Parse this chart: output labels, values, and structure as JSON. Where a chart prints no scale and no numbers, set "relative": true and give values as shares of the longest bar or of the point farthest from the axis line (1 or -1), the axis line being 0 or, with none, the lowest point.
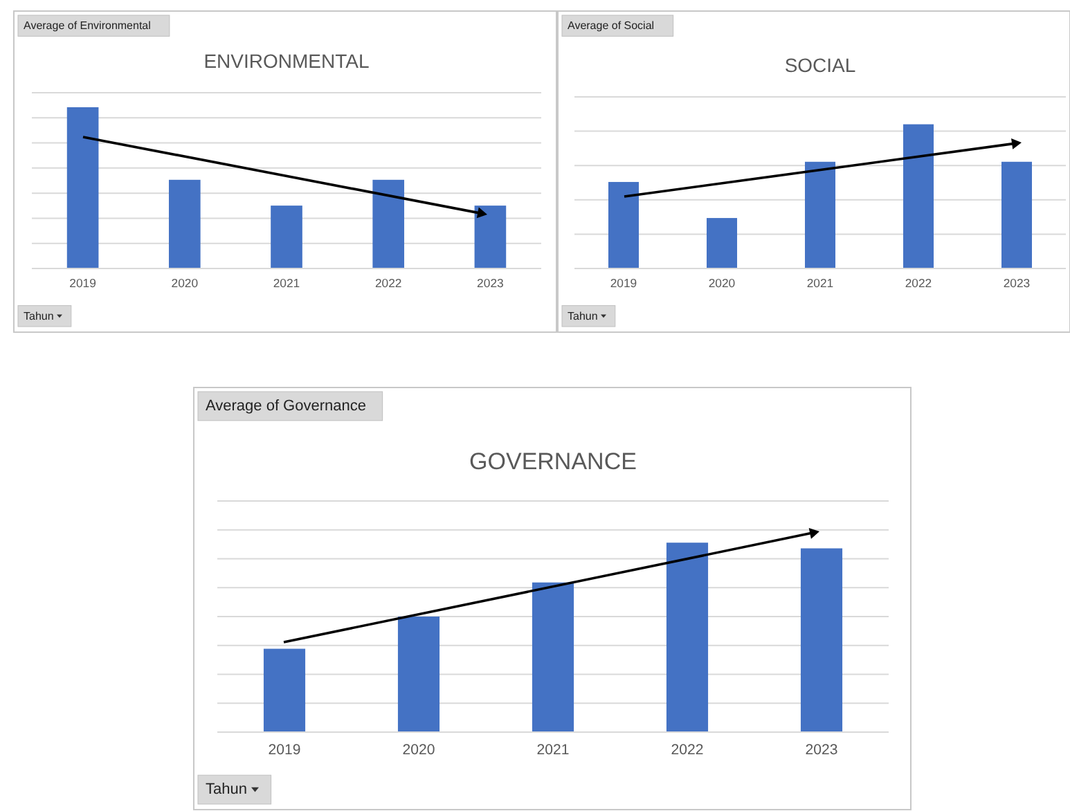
{
  "chart_data": [
    {
      "type": "bar",
      "title": "ENVIRONMENTAL",
      "ylabel": "Average of Environmental",
      "xlabel": "Tahun",
      "categories": [
        "2019",
        "2020",
        "2021",
        "2022",
        "2023"
      ],
      "values": [
        1,
        0.55,
        0.39,
        0.55,
        0.39
      ],
      "color": "#4472c4",
      "relative": true,
      "grid": "y"
    },
    {
      "type": "bar",
      "title": "SOCIAL",
      "ylabel": "Average of Social",
      "xlabel": "Tahun",
      "categories": [
        "2019",
        "2020",
        "2021",
        "2022",
        "2023"
      ],
      "values": [
        0.6,
        0.35,
        0.74,
        1,
        0.74
      ],
      "color": "#4472c4",
      "relative": true,
      "grid": "y"
    },
    {
      "type": "bar",
      "title": "GOVERNANCE",
      "ylabel": "Average of Governance",
      "xlabel": "Tahun",
      "categories": [
        "2019",
        "2020",
        "2021",
        "2022",
        "2023"
      ],
      "values": [
        0.44,
        0.61,
        0.79,
        1,
        0.97
      ],
      "color": "#4472c4",
      "relative": true,
      "grid": "y"
    }
  ]
}
